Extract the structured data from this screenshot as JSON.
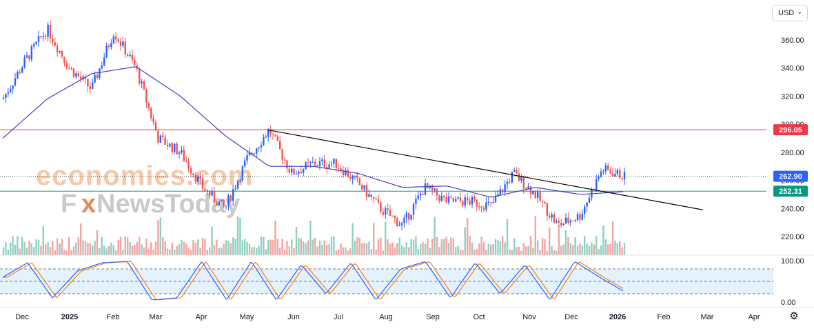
{
  "ui": {
    "currency": "USD",
    "currency_icon": "chevron-down-icon",
    "settings_icon": "gear-icon"
  },
  "watermark": {
    "line1": "economies.com",
    "line2_a": "F",
    "line2_b": "NewsToday",
    "x_glyph": "x"
  },
  "colors": {
    "up": "#2962ff",
    "down": "#ef5350",
    "ma": "#3f3fbf",
    "trend": "#000000",
    "resistance": "#f23645",
    "support": "#089981",
    "stoch_k": "#2962ff",
    "stoch_d": "#ff7f0e",
    "vol_up": "#8fd0c0",
    "vol_down": "#f4a3a0",
    "band": "#e3f2fd"
  },
  "chart_data": {
    "type": "candlestick",
    "y_ticks": [
      "360.00",
      "340.00",
      "320.00",
      "300.00",
      "280.00",
      "260.00",
      "240.00",
      "220.00"
    ],
    "y_range": [
      212,
      372
    ],
    "x_labels": [
      "Dec",
      "2025",
      "Feb",
      "Mar",
      "Apr",
      "May",
      "Jun",
      "Jul",
      "Aug",
      "Sep",
      "Oct",
      "Nov",
      "Dec",
      "2026",
      "Feb",
      "Mar",
      "Apr"
    ],
    "price_labels": [
      {
        "value": 296.05,
        "text": "296.05",
        "color": "#f23645"
      },
      {
        "value": 262.9,
        "text": "262.90",
        "color": "#2962ff"
      },
      {
        "value": 252.31,
        "text": "252.31",
        "color": "#089981"
      }
    ],
    "resistance": 296.05,
    "support": 252.31,
    "last": 262.9,
    "trendline": {
      "from": [
        "May",
        296
      ],
      "to": [
        "Mar",
        239
      ]
    },
    "price_path": [
      [
        "Dec",
        318
      ],
      [
        "Dec",
        345
      ],
      [
        "2025",
        368
      ],
      [
        "2025",
        340
      ],
      [
        "2025",
        325
      ],
      [
        "Feb",
        366
      ],
      [
        "Feb",
        340
      ],
      [
        "Mar",
        290
      ],
      [
        "Mar",
        280
      ],
      [
        "Apr",
        255
      ],
      [
        "Apr",
        240
      ],
      [
        "May",
        275
      ],
      [
        "May",
        296
      ],
      [
        "Jun",
        265
      ],
      [
        "Jun",
        272
      ],
      [
        "Jul",
        272
      ],
      [
        "Jul",
        258
      ],
      [
        "Aug",
        240
      ],
      [
        "Aug",
        228
      ],
      [
        "Sep",
        255
      ],
      [
        "Sep",
        245
      ],
      [
        "Oct",
        245
      ],
      [
        "Oct",
        242
      ],
      [
        "Oct",
        265
      ],
      [
        "Nov",
        250
      ],
      [
        "Nov",
        228
      ],
      [
        "Dec",
        235
      ],
      [
        "Dec",
        268
      ],
      [
        "2026",
        262.9
      ]
    ],
    "ma_path": [
      [
        "Dec",
        290
      ],
      [
        "2025",
        318
      ],
      [
        "Feb",
        336
      ],
      [
        "Feb",
        341
      ],
      [
        "Mar",
        320
      ],
      [
        "Apr",
        292
      ],
      [
        "May",
        270
      ],
      [
        "Jun",
        270
      ],
      [
        "Jul",
        265
      ],
      [
        "Aug",
        255
      ],
      [
        "Sep",
        256
      ],
      [
        "Oct",
        248
      ],
      [
        "Nov",
        255
      ],
      [
        "Dec",
        250
      ],
      [
        "2026",
        252
      ]
    ],
    "stochastic": {
      "y_ticks": [
        "100.00",
        "0.00"
      ],
      "y_range": [
        0,
        100
      ],
      "upper_band": 80,
      "lower_band": 20,
      "mid": 50,
      "k_path": [
        [
          "Dec",
          60
        ],
        [
          "Dec",
          95
        ],
        [
          "2025",
          10
        ],
        [
          "2025",
          75
        ],
        [
          "2025",
          95
        ],
        [
          "Feb",
          98
        ],
        [
          "Mar",
          5
        ],
        [
          "Mar",
          10
        ],
        [
          "Apr",
          98
        ],
        [
          "Apr",
          5
        ],
        [
          "May",
          98
        ],
        [
          "Jun",
          5
        ],
        [
          "Jun",
          90
        ],
        [
          "Jul",
          20
        ],
        [
          "Jul",
          95
        ],
        [
          "Aug",
          5
        ],
        [
          "Aug",
          80
        ],
        [
          "Sep",
          98
        ],
        [
          "Sep",
          10
        ],
        [
          "Oct",
          95
        ],
        [
          "Oct",
          20
        ],
        [
          "Nov",
          90
        ],
        [
          "Nov",
          5
        ],
        [
          "Dec",
          98
        ],
        [
          "Dec",
          60
        ],
        [
          "2026",
          25
        ]
      ]
    }
  }
}
